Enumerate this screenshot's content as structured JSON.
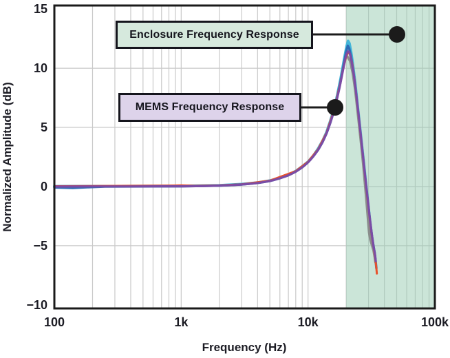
{
  "figure": {
    "x_axis": {
      "label": "Frequency (Hz)",
      "scale": "log",
      "range": [
        100,
        100000
      ],
      "ticks": [
        "100",
        "1k",
        "10k",
        "100k"
      ],
      "tick_values": [
        100,
        1000,
        10000,
        100000
      ]
    },
    "y_axis": {
      "label": "Normalized Amplitude (dB)",
      "range": [
        -10.3,
        15.3
      ],
      "ticks": [
        "15",
        "10",
        "5",
        "0",
        "−5",
        "−10"
      ],
      "tick_values": [
        15,
        10,
        5,
        0,
        -5,
        -10
      ]
    },
    "grid": {
      "show": true,
      "color": "#c9c9c9",
      "h_lines_db": [
        10,
        5,
        0,
        -5
      ]
    },
    "frame_color": "#1a1a1a",
    "background": "#ffffff"
  },
  "shaded_region": {
    "from_hz": 20000,
    "to_hz": 100000,
    "fill": "rgba(151,203,177,0.5)"
  },
  "annotations": {
    "enclosure": {
      "label": "Enclosure Frequency Response",
      "fill": "#d6e9dd",
      "callout_color": "#1b1b1b"
    },
    "mems": {
      "label": "MEMS Frequency Response",
      "fill": "#ddd3ea",
      "callout_color": "#1b1b1b"
    }
  },
  "chart_data": {
    "type": "line",
    "title": "",
    "xlabel": "Frequency (Hz)",
    "ylabel": "Normalized Amplitude (dB)",
    "x_scale": "log",
    "xlim": [
      100,
      100000
    ],
    "ylim": [
      -10,
      15
    ],
    "legend": "none",
    "description": "Multiple overlaid microphone frequency-response traces: flat at 0 dB, resonant peak ~11.5-12 dB near 21 kHz, steep roll-off to about -7 dB near 35 kHz",
    "series": [
      {
        "name": "trace-cyan",
        "color": "#43b6d9",
        "width": 4,
        "points": [
          [
            100,
            0.02
          ],
          [
            300,
            0.03
          ],
          [
            1000,
            0.05
          ],
          [
            2000,
            0.1
          ],
          [
            3000,
            0.2
          ],
          [
            4000,
            0.33
          ],
          [
            5000,
            0.5
          ],
          [
            6000,
            0.73
          ],
          [
            7000,
            1.0
          ],
          [
            8000,
            1.3
          ],
          [
            9000,
            1.7
          ],
          [
            10000,
            2.1
          ],
          [
            11000,
            2.6
          ],
          [
            12000,
            3.2
          ],
          [
            13000,
            3.85
          ],
          [
            14000,
            4.6
          ],
          [
            15000,
            5.55
          ],
          [
            16000,
            6.55
          ],
          [
            17000,
            7.7
          ],
          [
            18000,
            9.0
          ],
          [
            19000,
            10.4
          ],
          [
            19700,
            11.3
          ],
          [
            20200,
            11.9
          ],
          [
            20700,
            12.3
          ],
          [
            21200,
            12.1
          ],
          [
            21800,
            11.4
          ],
          [
            22500,
            10.4
          ],
          [
            23500,
            8.8
          ],
          [
            24500,
            7.0
          ],
          [
            25500,
            5.3
          ],
          [
            26500,
            3.6
          ],
          [
            27500,
            2.0
          ],
          [
            28500,
            0.4
          ],
          [
            29500,
            -1.1
          ],
          [
            30500,
            -2.5
          ],
          [
            31500,
            -3.8
          ],
          [
            32500,
            -4.9
          ],
          [
            33300,
            -5.5
          ],
          [
            33800,
            -6.1
          ]
        ]
      },
      {
        "name": "trace-blue",
        "color": "#2e6cb5",
        "width": 3.5,
        "points": [
          [
            100,
            -0.08
          ],
          [
            140,
            -0.12
          ],
          [
            180,
            -0.06
          ],
          [
            250,
            0
          ],
          [
            600,
            0.01
          ],
          [
            1000,
            0.02
          ],
          [
            2000,
            0.08
          ],
          [
            3000,
            0.17
          ],
          [
            4000,
            0.3
          ],
          [
            5000,
            0.47
          ],
          [
            6000,
            0.7
          ],
          [
            7000,
            0.95
          ],
          [
            8000,
            1.26
          ],
          [
            9000,
            1.63
          ],
          [
            10000,
            2.05
          ],
          [
            11000,
            2.55
          ],
          [
            12000,
            3.1
          ],
          [
            13000,
            3.75
          ],
          [
            14000,
            4.5
          ],
          [
            15000,
            5.4
          ],
          [
            16000,
            6.4
          ],
          [
            17000,
            7.55
          ],
          [
            18000,
            8.8
          ],
          [
            19000,
            10.15
          ],
          [
            19600,
            10.9
          ],
          [
            20100,
            11.5
          ],
          [
            20600,
            11.9
          ],
          [
            21100,
            11.7
          ],
          [
            21800,
            11.0
          ],
          [
            22800,
            9.7
          ],
          [
            23800,
            8.0
          ],
          [
            24800,
            6.3
          ],
          [
            25800,
            4.6
          ],
          [
            26800,
            3.0
          ],
          [
            27800,
            1.4
          ],
          [
            28800,
            -0.1
          ],
          [
            29800,
            -1.5
          ],
          [
            30800,
            -2.9
          ],
          [
            31800,
            -4.1
          ],
          [
            32800,
            -5.0
          ],
          [
            33600,
            -5.7
          ],
          [
            34300,
            -6.5
          ],
          [
            34600,
            -6.9
          ]
        ]
      },
      {
        "name": "trace-gray",
        "color": "#8a8d8c",
        "width": 3.5,
        "points": [
          [
            20400,
            11.0
          ],
          [
            21500,
            10.6
          ],
          [
            22500,
            9.6
          ],
          [
            23500,
            8.2
          ],
          [
            24500,
            6.5
          ],
          [
            25500,
            4.8
          ],
          [
            26500,
            3.1
          ],
          [
            27300,
            1.7
          ],
          [
            28000,
            0.4
          ],
          [
            28700,
            -0.9
          ],
          [
            29300,
            -2.0
          ],
          [
            29800,
            -3.0
          ],
          [
            30300,
            -3.9
          ],
          [
            31000,
            -4.5
          ],
          [
            31800,
            -4.9
          ],
          [
            32800,
            -5.4
          ],
          [
            33600,
            -6.0
          ],
          [
            34000,
            -6.4
          ]
        ]
      },
      {
        "name": "trace-orange",
        "color": "#e8512b",
        "width": 3,
        "points": [
          [
            100,
            0.03
          ],
          [
            800,
            0.08
          ],
          [
            1000,
            0.1
          ],
          [
            1300,
            0.06
          ],
          [
            2000,
            0.1
          ],
          [
            3000,
            0.19
          ],
          [
            5000,
            0.5
          ],
          [
            8000,
            1.3
          ],
          [
            10000,
            2.1
          ],
          [
            12000,
            3.15
          ],
          [
            14000,
            4.55
          ],
          [
            16000,
            6.45
          ],
          [
            18000,
            8.75
          ],
          [
            19000,
            10.05
          ],
          [
            20000,
            11.0
          ],
          [
            20700,
            11.35
          ],
          [
            21400,
            11.2
          ],
          [
            22300,
            10.4
          ],
          [
            23300,
            9.0
          ],
          [
            24300,
            7.3
          ],
          [
            25300,
            5.6
          ],
          [
            26300,
            3.9
          ],
          [
            27300,
            2.3
          ],
          [
            28300,
            0.7
          ],
          [
            29300,
            -0.8
          ],
          [
            30300,
            -2.2
          ],
          [
            31300,
            -3.5
          ],
          [
            32300,
            -4.6
          ],
          [
            33300,
            -5.5
          ],
          [
            34000,
            -6.2
          ],
          [
            34500,
            -6.8
          ],
          [
            34900,
            -7.35
          ]
        ]
      },
      {
        "name": "trace-purple",
        "color": "#7b4ca5",
        "width": 3.2,
        "points": [
          [
            100,
            0
          ],
          [
            200,
            0.01
          ],
          [
            400,
            0.01
          ],
          [
            700,
            0.02
          ],
          [
            1000,
            0.02
          ],
          [
            1500,
            0.04
          ],
          [
            2000,
            0.08
          ],
          [
            2500,
            0.12
          ],
          [
            3000,
            0.17
          ],
          [
            3500,
            0.23
          ],
          [
            4000,
            0.3
          ],
          [
            4500,
            0.38
          ],
          [
            5000,
            0.47
          ],
          [
            5500,
            0.58
          ],
          [
            6000,
            0.7
          ],
          [
            6500,
            0.82
          ],
          [
            7000,
            0.95
          ],
          [
            7500,
            1.1
          ],
          [
            8000,
            1.26
          ],
          [
            8500,
            1.44
          ],
          [
            9000,
            1.63
          ],
          [
            9500,
            1.83
          ],
          [
            10000,
            2.05
          ],
          [
            10500,
            2.29
          ],
          [
            11000,
            2.55
          ],
          [
            11500,
            2.82
          ],
          [
            12000,
            3.1
          ],
          [
            12500,
            3.42
          ],
          [
            13000,
            3.75
          ],
          [
            13500,
            4.11
          ],
          [
            14000,
            4.5
          ],
          [
            14500,
            4.93
          ],
          [
            15000,
            5.4
          ],
          [
            15500,
            5.88
          ],
          [
            16000,
            6.4
          ],
          [
            16500,
            6.95
          ],
          [
            17000,
            7.5
          ],
          [
            17500,
            8.1
          ],
          [
            18000,
            8.7
          ],
          [
            18500,
            9.35
          ],
          [
            19000,
            10.0
          ],
          [
            19400,
            10.5
          ],
          [
            19800,
            10.95
          ],
          [
            20200,
            11.25
          ],
          [
            20600,
            11.42
          ],
          [
            21000,
            11.4
          ],
          [
            21400,
            11.2
          ],
          [
            21900,
            10.75
          ],
          [
            22500,
            10.0
          ],
          [
            23000,
            9.4
          ],
          [
            23500,
            8.6
          ],
          [
            24000,
            7.8
          ],
          [
            24500,
            7.0
          ],
          [
            25000,
            6.15
          ],
          [
            25500,
            5.3
          ],
          [
            26000,
            4.45
          ],
          [
            26500,
            3.6
          ],
          [
            27000,
            2.75
          ],
          [
            27500,
            2.0
          ],
          [
            28000,
            1.2
          ],
          [
            28500,
            0.45
          ],
          [
            29000,
            -0.3
          ],
          [
            29500,
            -1.0
          ],
          [
            30000,
            -1.7
          ],
          [
            30500,
            -2.4
          ],
          [
            31000,
            -3.0
          ],
          [
            31500,
            -3.6
          ],
          [
            32000,
            -4.2
          ],
          [
            32500,
            -4.7
          ],
          [
            33000,
            -5.2
          ],
          [
            33500,
            -5.5
          ],
          [
            33900,
            -5.9
          ],
          [
            34200,
            -6.3
          ]
        ]
      }
    ]
  }
}
